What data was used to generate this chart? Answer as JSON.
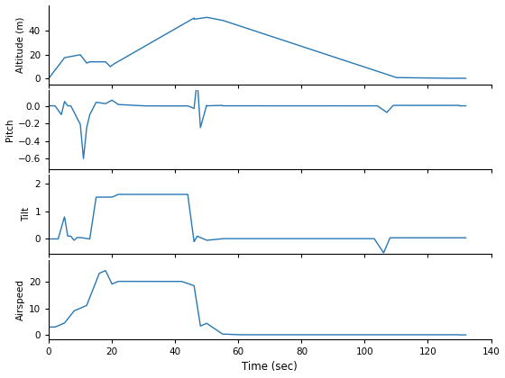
{
  "line_color": "#2878b5",
  "line_width": 1.0,
  "xlim": [
    0,
    140
  ],
  "xticks": [
    0,
    20,
    40,
    60,
    80,
    100,
    120,
    140
  ],
  "xlabel": "Time (sec)",
  "figsize": [
    5.6,
    4.2
  ],
  "dpi": 100,
  "subplots": [
    {
      "ylabel": "Altitude (m)",
      "ylim": [
        -5,
        62
      ],
      "yticks": [
        0,
        20,
        40
      ]
    },
    {
      "ylabel": "Pitch",
      "ylim": [
        -0.72,
        0.18
      ],
      "yticks": [
        0,
        -0.2,
        -0.4,
        -0.6
      ]
    },
    {
      "ylabel": "Tilt",
      "ylim": [
        -0.55,
        2.3
      ],
      "yticks": [
        0,
        1,
        2
      ]
    },
    {
      "ylabel": "Airspeed",
      "ylim": [
        -1.5,
        28
      ],
      "yticks": [
        0,
        10,
        20
      ]
    }
  ]
}
